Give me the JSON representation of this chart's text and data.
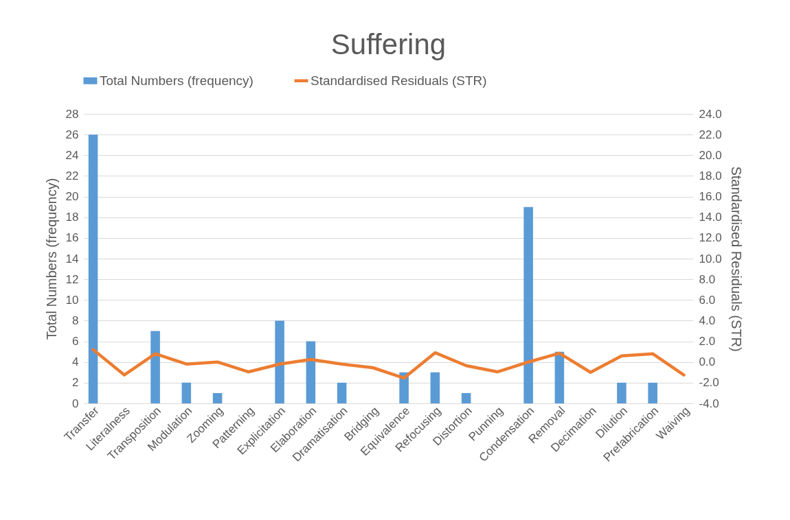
{
  "chart_data": {
    "type": "bar",
    "title": "Suffering",
    "ylabel": "Total Numbers (frequency)",
    "y2label": "Standardised Residuals (STR)",
    "categories": [
      "Transfer",
      "Literalness",
      "Transposition",
      "Modulation",
      "Zooming",
      "Patterning",
      "Explicitation",
      "Elaboration",
      "Dramatisation",
      "Bridging",
      "Equivalence",
      "Refocusing",
      "Distortion",
      "Punning",
      "Condensation",
      "Removal",
      "Decimation",
      "Dilution",
      "Prefabrication",
      "Waiving"
    ],
    "series": [
      {
        "name": "Total Numbers (frequency)",
        "color": "#5b9bd5",
        "values": [
          26,
          0,
          7,
          2,
          1,
          0,
          8,
          6,
          2,
          0,
          3,
          3,
          1,
          0,
          19,
          5,
          0,
          2,
          2,
          0
        ]
      },
      {
        "name": "Standardised Residuals (STR)",
        "color": "#ed7d31",
        "type": "line",
        "axis": "y2",
        "values": [
          1.2,
          -1.25,
          0.8,
          -0.2,
          0.0,
          -0.95,
          -0.2,
          0.25,
          -0.2,
          -0.55,
          -1.55,
          0.9,
          -0.35,
          -0.95,
          0.0,
          0.85,
          -1.0,
          0.6,
          0.8,
          -1.25
        ]
      }
    ],
    "ylim": [
      0,
      28
    ],
    "yticks": [
      0,
      2,
      4,
      6,
      8,
      10,
      12,
      14,
      16,
      18,
      20,
      22,
      24,
      26,
      28
    ],
    "y2lim": [
      -4,
      24
    ],
    "y2ticks": [
      {
        "value": -4,
        "label": "-4.0"
      },
      {
        "value": -2,
        "label": "-2.0"
      },
      {
        "value": 0,
        "label": "0.0"
      },
      {
        "value": 2,
        "label": "2.0"
      },
      {
        "value": 4,
        "label": "4.0"
      },
      {
        "value": 6,
        "label": "6.0"
      },
      {
        "value": 8,
        "label": "8.0"
      },
      {
        "value": 10,
        "label": "10.0"
      },
      {
        "value": 12,
        "label": "12.0"
      },
      {
        "value": 14,
        "label": "14.0"
      },
      {
        "value": 16,
        "label": "16.0"
      },
      {
        "value": 18,
        "label": "18.0"
      },
      {
        "value": 20,
        "label": "20.0"
      },
      {
        "value": 22,
        "label": "22.0"
      },
      {
        "value": 24,
        "label": "24.0"
      }
    ],
    "grid": "y",
    "legend": "top",
    "line_style": "solid"
  }
}
